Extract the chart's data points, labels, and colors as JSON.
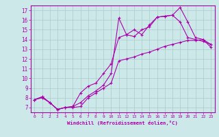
{
  "xlabel": "Windchill (Refroidissement éolien,°C)",
  "xlim": [
    -0.5,
    23.5
  ],
  "ylim": [
    6.5,
    17.5
  ],
  "xticks": [
    0,
    1,
    2,
    3,
    4,
    5,
    6,
    7,
    8,
    9,
    10,
    11,
    12,
    13,
    14,
    15,
    16,
    17,
    18,
    19,
    20,
    21,
    22,
    23
  ],
  "yticks": [
    7,
    8,
    9,
    10,
    11,
    12,
    13,
    14,
    15,
    16,
    17
  ],
  "bg_color": "#cce8e8",
  "line_color": "#aa00aa",
  "grid_color": "#aacccc",
  "series1_x": [
    0,
    1,
    2,
    3,
    4,
    5,
    6,
    7,
    8,
    9,
    10,
    11,
    12,
    13,
    14,
    15,
    16,
    17,
    18,
    19,
    20,
    21,
    22,
    23
  ],
  "series1_y": [
    7.8,
    8.1,
    7.5,
    6.8,
    7.0,
    7.0,
    7.1,
    8.0,
    8.5,
    9.0,
    9.5,
    11.8,
    12.0,
    12.2,
    12.5,
    12.7,
    13.0,
    13.3,
    13.5,
    13.7,
    13.9,
    13.9,
    14.0,
    13.5
  ],
  "series2_x": [
    0,
    1,
    2,
    3,
    4,
    5,
    6,
    7,
    8,
    9,
    10,
    11,
    12,
    13,
    14,
    15,
    16,
    17,
    18,
    19,
    20,
    21,
    22,
    23
  ],
  "series2_y": [
    7.8,
    8.0,
    7.5,
    6.8,
    7.0,
    7.1,
    8.5,
    9.2,
    9.5,
    10.5,
    11.5,
    14.2,
    14.5,
    14.3,
    15.0,
    15.3,
    16.3,
    16.4,
    16.5,
    17.3,
    15.8,
    14.2,
    14.0,
    13.2
  ],
  "series3_x": [
    0,
    1,
    2,
    3,
    4,
    5,
    6,
    7,
    8,
    9,
    10,
    11,
    12,
    13,
    14,
    15,
    16,
    17,
    18,
    19,
    20,
    21,
    22,
    23
  ],
  "series3_y": [
    7.8,
    8.1,
    7.5,
    6.8,
    7.0,
    7.1,
    7.5,
    8.2,
    8.7,
    9.3,
    10.5,
    16.2,
    14.5,
    15.0,
    14.5,
    15.5,
    16.3,
    16.4,
    16.5,
    15.8,
    14.2,
    14.0,
    13.8,
    13.5
  ]
}
